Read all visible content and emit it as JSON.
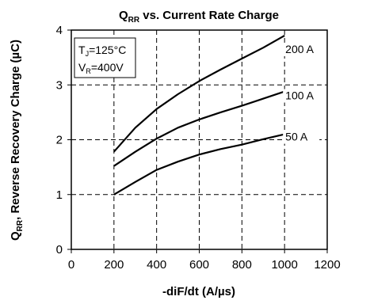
{
  "chart_data": {
    "type": "line",
    "title_main": "Q",
    "title_sub": "RR",
    "title_rest": " vs. Current Rate Charge",
    "xlabel": "-diF/dt (A/µs)",
    "ylabel_main": "Q",
    "ylabel_sub": "RR",
    "ylabel_rest": ", Reverse Recovery Charge (µC)",
    "xlim": [
      0,
      1200
    ],
    "ylim": [
      0,
      4
    ],
    "xticks": [
      "0",
      "200",
      "400",
      "600",
      "800",
      "1000",
      "1200"
    ],
    "yticks": [
      "0",
      "1",
      "2",
      "3",
      "4"
    ],
    "grid": true,
    "conditions": [
      {
        "main": "T",
        "sub": "J",
        "rest": "=125°C"
      },
      {
        "main": "V",
        "sub": "R",
        "rest": "=400V"
      }
    ],
    "x": [
      200,
      300,
      400,
      500,
      600,
      700,
      800,
      900,
      1000
    ],
    "series": [
      {
        "name": "200 A",
        "values": [
          1.78,
          2.22,
          2.56,
          2.83,
          3.07,
          3.28,
          3.48,
          3.68,
          3.9
        ]
      },
      {
        "name": "100 A",
        "values": [
          1.52,
          1.78,
          2.02,
          2.22,
          2.37,
          2.5,
          2.62,
          2.75,
          2.88
        ]
      },
      {
        "name": "50 A",
        "values": [
          1.0,
          1.23,
          1.45,
          1.6,
          1.73,
          1.83,
          1.91,
          2.01,
          2.1
        ]
      }
    ]
  }
}
